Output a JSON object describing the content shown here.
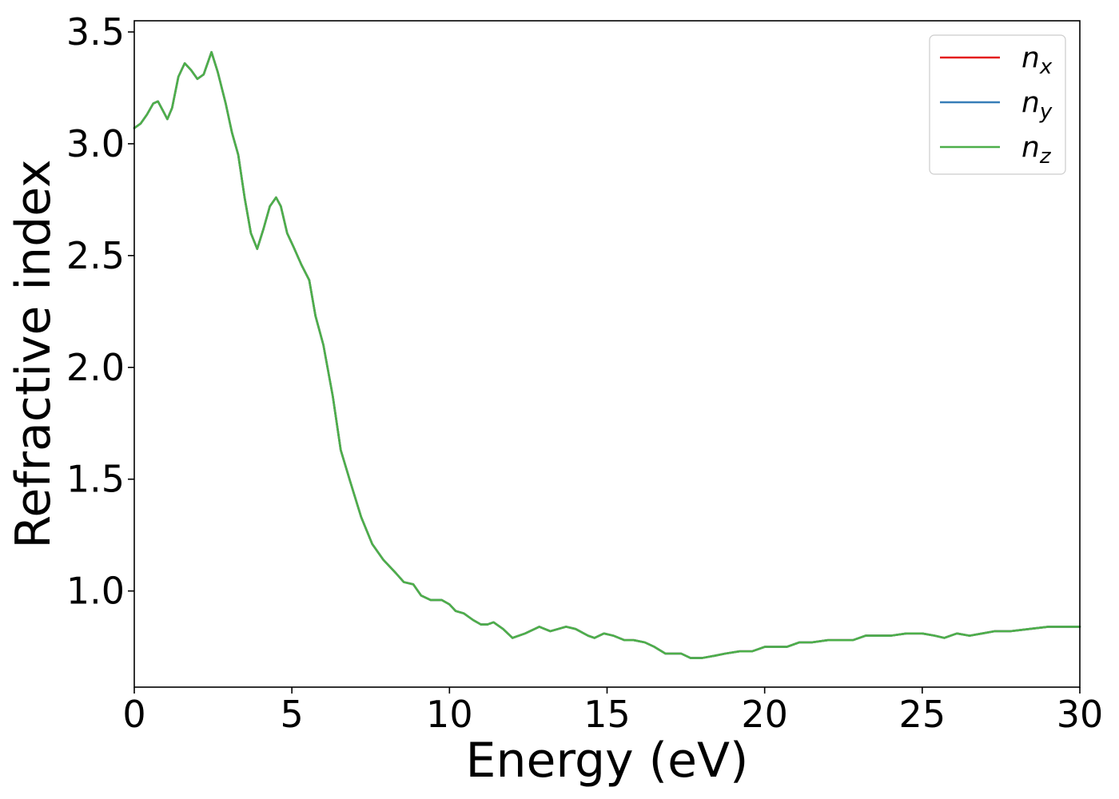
{
  "chart_data": {
    "type": "line",
    "title": "",
    "xlabel": "Energy (eV)",
    "ylabel": "Refractive index",
    "xlim": [
      0,
      30
    ],
    "ylim": [
      0.57,
      3.55
    ],
    "xticks": [
      0,
      5,
      10,
      15,
      20,
      25,
      30
    ],
    "xtick_labels": [
      "0",
      "5",
      "10",
      "15",
      "20",
      "25",
      "30"
    ],
    "yticks": [
      1.0,
      1.5,
      2.0,
      2.5,
      3.0,
      3.5
    ],
    "ytick_labels": [
      "1.0",
      "1.5",
      "2.0",
      "2.5",
      "3.0",
      "3.5"
    ],
    "grid": false,
    "legend_position": "top-right",
    "x": [
      0,
      0.2,
      0.4,
      0.6,
      0.75,
      0.9,
      1.05,
      1.2,
      1.4,
      1.6,
      1.8,
      2.0,
      2.2,
      2.45,
      2.65,
      2.9,
      3.1,
      3.3,
      3.5,
      3.7,
      3.9,
      4.1,
      4.3,
      4.5,
      4.65,
      4.85,
      5.05,
      5.3,
      5.55,
      5.75,
      6.0,
      6.3,
      6.55,
      6.85,
      7.2,
      7.55,
      7.9,
      8.3,
      8.55,
      8.85,
      9.1,
      9.4,
      9.75,
      10.0,
      10.2,
      10.45,
      10.75,
      11.0,
      11.2,
      11.4,
      11.7,
      12.0,
      12.4,
      12.85,
      13.2,
      13.7,
      14.0,
      14.4,
      14.6,
      14.9,
      15.2,
      15.55,
      15.85,
      16.2,
      16.5,
      16.85,
      17.15,
      17.35,
      17.65,
      18.0,
      18.4,
      18.75,
      19.2,
      19.6,
      20.0,
      20.4,
      20.7,
      21.1,
      21.5,
      22.0,
      22.5,
      22.8,
      23.2,
      23.6,
      24.0,
      24.5,
      25.0,
      25.4,
      25.7,
      26.1,
      26.5,
      26.9,
      27.3,
      27.8,
      28.4,
      29.0,
      29.5,
      30.0
    ],
    "series": [
      {
        "name": "n_x",
        "color": "#e41a1c",
        "values": [
          3.07,
          3.09,
          3.13,
          3.18,
          3.19,
          3.15,
          3.11,
          3.16,
          3.3,
          3.36,
          3.33,
          3.29,
          3.31,
          3.41,
          3.32,
          3.18,
          3.05,
          2.95,
          2.76,
          2.6,
          2.53,
          2.62,
          2.72,
          2.76,
          2.72,
          2.6,
          2.54,
          2.46,
          2.39,
          2.23,
          2.1,
          1.87,
          1.63,
          1.49,
          1.33,
          1.21,
          1.14,
          1.08,
          1.04,
          1.03,
          0.98,
          0.96,
          0.96,
          0.94,
          0.91,
          0.9,
          0.87,
          0.85,
          0.85,
          0.86,
          0.83,
          0.79,
          0.81,
          0.84,
          0.82,
          0.84,
          0.83,
          0.8,
          0.79,
          0.81,
          0.8,
          0.78,
          0.78,
          0.77,
          0.75,
          0.72,
          0.72,
          0.72,
          0.7,
          0.7,
          0.71,
          0.72,
          0.73,
          0.73,
          0.75,
          0.75,
          0.75,
          0.77,
          0.77,
          0.78,
          0.78,
          0.78,
          0.8,
          0.8,
          0.8,
          0.81,
          0.81,
          0.8,
          0.79,
          0.81,
          0.8,
          0.81,
          0.82,
          0.82,
          0.83,
          0.84,
          0.84,
          0.84
        ]
      },
      {
        "name": "n_y",
        "color": "#377eb8",
        "values": [
          3.07,
          3.09,
          3.13,
          3.18,
          3.19,
          3.15,
          3.11,
          3.16,
          3.3,
          3.36,
          3.33,
          3.29,
          3.31,
          3.41,
          3.32,
          3.18,
          3.05,
          2.95,
          2.76,
          2.6,
          2.53,
          2.62,
          2.72,
          2.76,
          2.72,
          2.6,
          2.54,
          2.46,
          2.39,
          2.23,
          2.1,
          1.87,
          1.63,
          1.49,
          1.33,
          1.21,
          1.14,
          1.08,
          1.04,
          1.03,
          0.98,
          0.96,
          0.96,
          0.94,
          0.91,
          0.9,
          0.87,
          0.85,
          0.85,
          0.86,
          0.83,
          0.79,
          0.81,
          0.84,
          0.82,
          0.84,
          0.83,
          0.8,
          0.79,
          0.81,
          0.8,
          0.78,
          0.78,
          0.77,
          0.75,
          0.72,
          0.72,
          0.72,
          0.7,
          0.7,
          0.71,
          0.72,
          0.73,
          0.73,
          0.75,
          0.75,
          0.75,
          0.77,
          0.77,
          0.78,
          0.78,
          0.78,
          0.8,
          0.8,
          0.8,
          0.81,
          0.81,
          0.8,
          0.79,
          0.81,
          0.8,
          0.81,
          0.82,
          0.82,
          0.83,
          0.84,
          0.84,
          0.84
        ]
      },
      {
        "name": "n_z",
        "color": "#4daf4a",
        "values": [
          3.07,
          3.09,
          3.13,
          3.18,
          3.19,
          3.15,
          3.11,
          3.16,
          3.3,
          3.36,
          3.33,
          3.29,
          3.31,
          3.41,
          3.32,
          3.18,
          3.05,
          2.95,
          2.76,
          2.6,
          2.53,
          2.62,
          2.72,
          2.76,
          2.72,
          2.6,
          2.54,
          2.46,
          2.39,
          2.23,
          2.1,
          1.87,
          1.63,
          1.49,
          1.33,
          1.21,
          1.14,
          1.08,
          1.04,
          1.03,
          0.98,
          0.96,
          0.96,
          0.94,
          0.91,
          0.9,
          0.87,
          0.85,
          0.85,
          0.86,
          0.83,
          0.79,
          0.81,
          0.84,
          0.82,
          0.84,
          0.83,
          0.8,
          0.79,
          0.81,
          0.8,
          0.78,
          0.78,
          0.77,
          0.75,
          0.72,
          0.72,
          0.72,
          0.7,
          0.7,
          0.71,
          0.72,
          0.73,
          0.73,
          0.75,
          0.75,
          0.75,
          0.77,
          0.77,
          0.78,
          0.78,
          0.78,
          0.8,
          0.8,
          0.8,
          0.81,
          0.81,
          0.8,
          0.79,
          0.81,
          0.8,
          0.81,
          0.82,
          0.82,
          0.83,
          0.84,
          0.84,
          0.84
        ]
      }
    ],
    "legend": [
      {
        "base": "n",
        "sub": "x",
        "color": "#e41a1c"
      },
      {
        "base": "n",
        "sub": "y",
        "color": "#377eb8"
      },
      {
        "base": "n",
        "sub": "z",
        "color": "#4daf4a"
      }
    ]
  }
}
